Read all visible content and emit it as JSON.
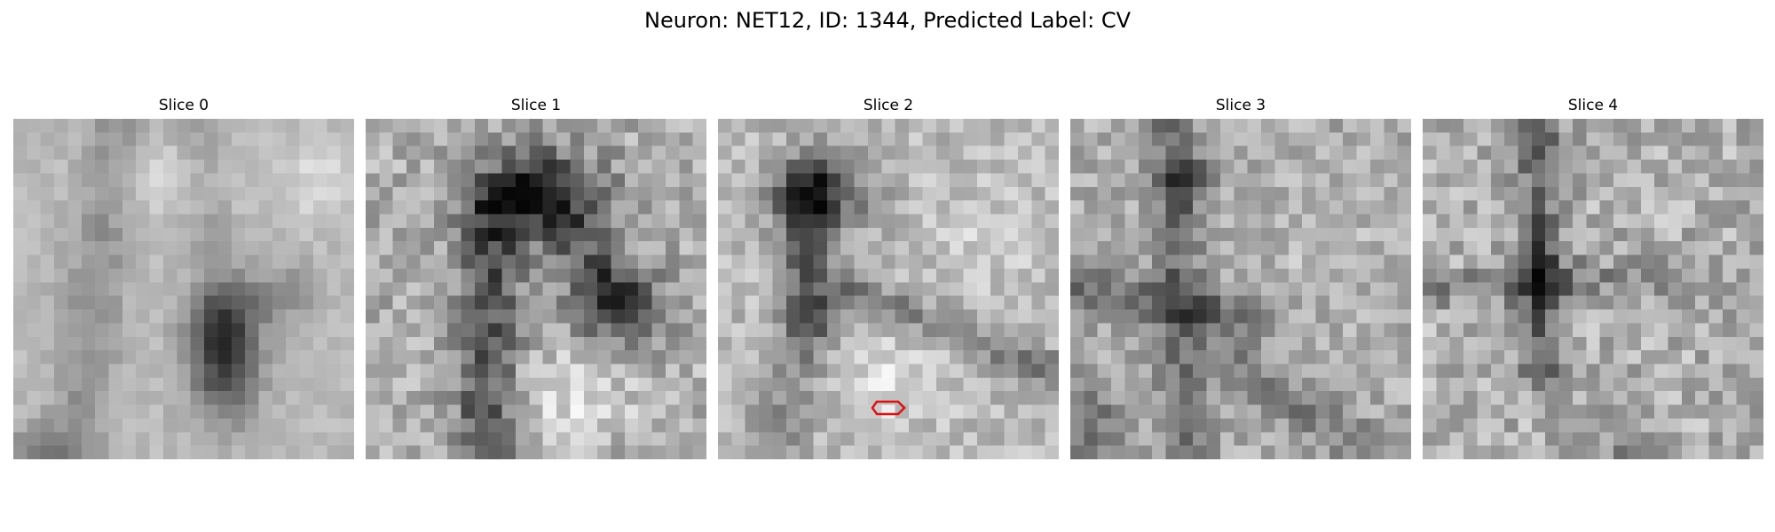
{
  "figure": {
    "title": "Neuron: NET12, ID: 1344, Predicted Label: CV",
    "colormap": "gray",
    "roi_color": "#dd1111"
  },
  "slices": [
    {
      "label": "Slice 0"
    },
    {
      "label": "Slice 1"
    },
    {
      "label": "Slice 2",
      "has_roi": true
    },
    {
      "label": "Slice 3"
    },
    {
      "label": "Slice 4"
    }
  ]
}
